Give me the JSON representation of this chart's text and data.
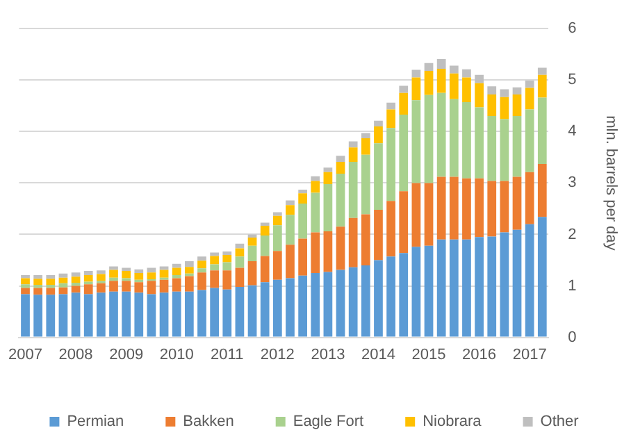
{
  "chart_data": {
    "type": "bar",
    "stacked": true,
    "ylabel": "mln. barrels per day",
    "categories": [
      "2007",
      null,
      null,
      null,
      "2008",
      null,
      null,
      null,
      "2009",
      null,
      null,
      null,
      "2010",
      null,
      null,
      null,
      "2011",
      null,
      null,
      null,
      "2012",
      null,
      null,
      null,
      "2013",
      null,
      null,
      null,
      "2014",
      null,
      null,
      null,
      "2015",
      null,
      null,
      null,
      "2016",
      null,
      null,
      null,
      "2017",
      null
    ],
    "series": [
      {
        "name": "Permian",
        "color": "#5b9bd5",
        "values": [
          0.84,
          0.83,
          0.83,
          0.84,
          0.87,
          0.84,
          0.87,
          0.89,
          0.89,
          0.87,
          0.84,
          0.87,
          0.89,
          0.89,
          0.92,
          0.96,
          0.93,
          0.98,
          1.01,
          1.07,
          1.12,
          1.15,
          1.2,
          1.25,
          1.27,
          1.31,
          1.36,
          1.4,
          1.5,
          1.57,
          1.64,
          1.76,
          1.78,
          1.9,
          1.9,
          1.9,
          1.95,
          1.96,
          2.04,
          2.09,
          2.2,
          2.34
        ]
      },
      {
        "name": "Bakken",
        "color": "#ed7d31",
        "values": [
          0.12,
          0.13,
          0.13,
          0.13,
          0.13,
          0.19,
          0.18,
          0.21,
          0.21,
          0.2,
          0.26,
          0.25,
          0.26,
          0.3,
          0.34,
          0.34,
          0.37,
          0.37,
          0.47,
          0.51,
          0.56,
          0.65,
          0.72,
          0.79,
          0.79,
          0.84,
          0.96,
          0.99,
          0.98,
          1.08,
          1.2,
          1.24,
          1.22,
          1.22,
          1.22,
          1.19,
          1.14,
          1.08,
          1.0,
          1.03,
          1.01,
          1.03
        ]
      },
      {
        "name": "Eagle Fort",
        "color": "#a9d18e",
        "values": [
          0.07,
          0.06,
          0.06,
          0.08,
          0.06,
          0.05,
          0.05,
          0.06,
          0.05,
          0.05,
          0.03,
          0.04,
          0.06,
          0.05,
          0.08,
          0.12,
          0.16,
          0.22,
          0.3,
          0.4,
          0.5,
          0.58,
          0.68,
          0.77,
          0.92,
          1.03,
          1.09,
          1.16,
          1.29,
          1.42,
          1.49,
          1.61,
          1.71,
          1.63,
          1.51,
          1.48,
          1.38,
          1.26,
          1.2,
          1.18,
          1.22,
          1.29
        ]
      },
      {
        "name": "Niobrara",
        "color": "#ffc000",
        "values": [
          0.12,
          0.12,
          0.12,
          0.11,
          0.12,
          0.13,
          0.13,
          0.15,
          0.14,
          0.13,
          0.13,
          0.15,
          0.14,
          0.13,
          0.15,
          0.16,
          0.14,
          0.16,
          0.16,
          0.19,
          0.18,
          0.19,
          0.2,
          0.23,
          0.23,
          0.23,
          0.28,
          0.32,
          0.33,
          0.36,
          0.42,
          0.44,
          0.47,
          0.47,
          0.5,
          0.48,
          0.47,
          0.42,
          0.43,
          0.42,
          0.42,
          0.44
        ]
      },
      {
        "name": "Other",
        "color": "#bfbfbf",
        "values": [
          0.06,
          0.07,
          0.07,
          0.08,
          0.08,
          0.08,
          0.07,
          0.07,
          0.06,
          0.07,
          0.09,
          0.07,
          0.08,
          0.11,
          0.08,
          0.07,
          0.07,
          0.09,
          0.06,
          0.06,
          0.07,
          0.09,
          0.07,
          0.09,
          0.09,
          0.12,
          0.12,
          0.1,
          0.11,
          0.13,
          0.14,
          0.15,
          0.15,
          0.19,
          0.15,
          0.16,
          0.16,
          0.16,
          0.15,
          0.14,
          0.14,
          0.14
        ]
      }
    ],
    "ylim": [
      0,
      6
    ],
    "yticks": [
      0,
      1,
      2,
      3,
      4,
      5,
      6
    ],
    "grid": "y",
    "legend": "bottom"
  }
}
